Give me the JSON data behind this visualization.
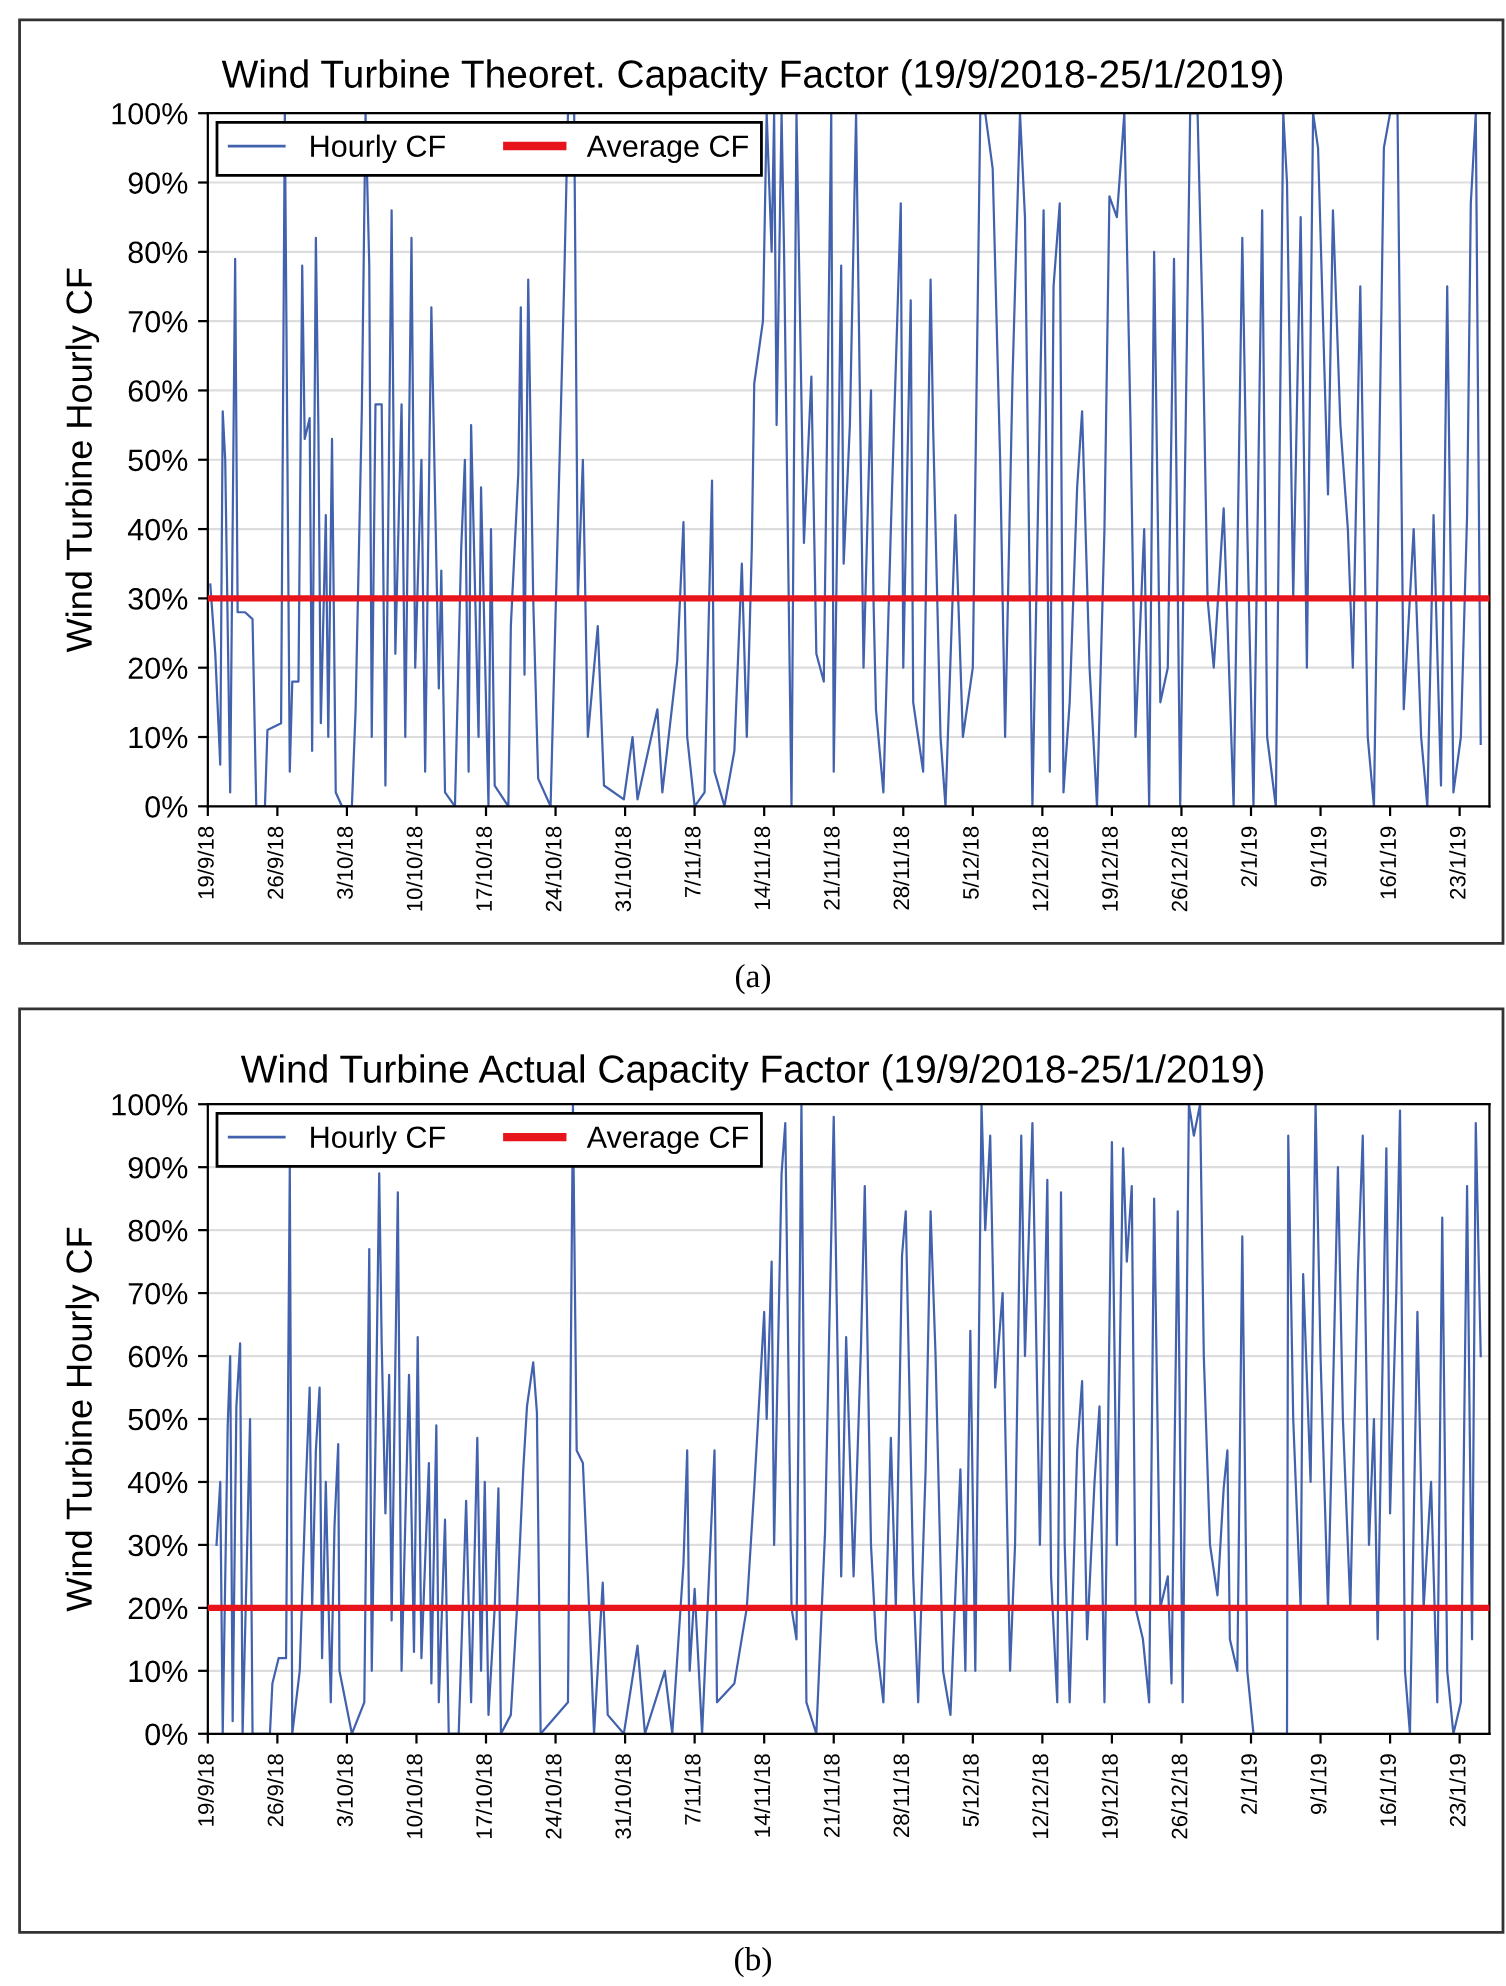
{
  "chart_data": [
    {
      "type": "line",
      "title": "Wind Turbine Theoret. Capacity Factor (19/9/2018-25/1/2019)",
      "ylabel": "Wind Turbine Hourly CF",
      "annotations": [
        "(a)"
      ],
      "xlim": [
        "2018-09-19",
        "2019-01-26"
      ],
      "xticks": [
        {
          "value": "2018-09-19",
          "label": "19/9/18"
        },
        {
          "value": "2018-09-26",
          "label": "26/9/18"
        },
        {
          "value": "2018-10-03",
          "label": "3/10/18"
        },
        {
          "value": "2018-10-10",
          "label": "10/10/18"
        },
        {
          "value": "2018-10-17",
          "label": "17/10/18"
        },
        {
          "value": "2018-10-24",
          "label": "24/10/18"
        },
        {
          "value": "2018-10-31",
          "label": "31/10/18"
        },
        {
          "value": "2018-11-07",
          "label": "7/11/18"
        },
        {
          "value": "2018-11-14",
          "label": "14/11/18"
        },
        {
          "value": "2018-11-21",
          "label": "21/11/18"
        },
        {
          "value": "2018-11-28",
          "label": "28/11/18"
        },
        {
          "value": "2018-12-05",
          "label": "5/12/18"
        },
        {
          "value": "2018-12-12",
          "label": "12/12/18"
        },
        {
          "value": "2018-12-19",
          "label": "19/12/18"
        },
        {
          "value": "2018-12-26",
          "label": "26/12/18"
        },
        {
          "value": "2019-01-02",
          "label": "2/1/19"
        },
        {
          "value": "2019-01-09",
          "label": "9/1/19"
        },
        {
          "value": "2019-01-16",
          "label": "16/1/19"
        },
        {
          "value": "2019-01-23",
          "label": "23/1/19"
        }
      ],
      "ylim": [
        0,
        100
      ],
      "yticks": [
        {
          "value": 0,
          "label": "0%"
        },
        {
          "value": 10,
          "label": "10%"
        },
        {
          "value": 20,
          "label": "20%"
        },
        {
          "value": 30,
          "label": "30%"
        },
        {
          "value": 40,
          "label": "40%"
        },
        {
          "value": 50,
          "label": "50%"
        },
        {
          "value": 60,
          "label": "60%"
        },
        {
          "value": 70,
          "label": "70%"
        },
        {
          "value": 80,
          "label": "80%"
        },
        {
          "value": 90,
          "label": "90%"
        },
        {
          "value": 100,
          "label": "100%"
        }
      ],
      "grid": "y",
      "legend": "top left",
      "line_style": "solid",
      "marker": "none",
      "series": [
        {
          "name": "Hourly CF",
          "color": "#4262ae",
          "x": [
            "2018-09-19T06:00",
            "2018-09-19T18:00",
            "2018-09-20T06:00",
            "2018-09-20T12:00",
            "2018-09-20T18:00",
            "2018-09-21T06:00",
            "2018-09-21T18:00",
            "2018-09-22T00:00",
            "2018-09-22T18:00",
            "2018-09-23T12:00",
            "2018-09-23T21:00",
            "2018-09-24T18:00",
            "2018-09-25T00:00",
            "2018-09-26T09:00",
            "2018-09-26T18:00",
            "2018-09-27T06:00",
            "2018-09-27T12:00",
            "2018-09-28T03:00",
            "2018-09-28T12:00",
            "2018-09-28T18:00",
            "2018-09-29T06:00",
            "2018-09-29T12:00",
            "2018-09-29T21:00",
            "2018-09-30T03:00",
            "2018-09-30T09:00",
            "2018-09-30T21:00",
            "2018-10-01T03:00",
            "2018-10-01T12:00",
            "2018-10-01T21:00",
            "2018-10-02T12:00",
            "2018-10-03T12:00",
            "2018-10-03T21:00",
            "2018-10-04T12:00",
            "2018-10-04T21:00",
            "2018-10-05T06:00",
            "2018-10-05T12:00",
            "2018-10-05T21:00",
            "2018-10-06T12:00",
            "2018-10-06T21:00",
            "2018-10-07T12:00",
            "2018-10-07T21:00",
            "2018-10-08T12:00",
            "2018-10-08T21:00",
            "2018-10-09T12:00",
            "2018-10-09T21:00",
            "2018-10-10T12:00",
            "2018-10-10T21:00",
            "2018-10-11T12:00",
            "2018-10-12T06:00",
            "2018-10-12T12:00",
            "2018-10-12T21:00",
            "2018-10-13T21:00",
            "2018-10-14T12:00",
            "2018-10-14T21:00",
            "2018-10-15T06:00",
            "2018-10-15T12:00",
            "2018-10-16T06:00",
            "2018-10-16T12:00",
            "2018-10-17T06:00",
            "2018-10-17T12:00",
            "2018-10-17T21:00",
            "2018-10-19T06:00",
            "2018-10-19T12:00",
            "2018-10-20T06:00",
            "2018-10-20T12:00",
            "2018-10-20T21:00",
            "2018-10-21T06:00",
            "2018-10-21T18:00",
            "2018-10-22T06:00",
            "2018-10-23T12:00",
            "2018-10-24T21:00",
            "2018-10-25T06:00",
            "2018-10-25T21:00",
            "2018-10-26T06:00",
            "2018-10-26T18:00",
            "2018-10-27T06:00",
            "2018-10-28T06:00",
            "2018-10-28T21:00",
            "2018-10-30T21:00",
            "2018-10-31T18:00",
            "2018-11-01T06:00",
            "2018-11-03T06:00",
            "2018-11-03T18:00",
            "2018-11-05T06:00",
            "2018-11-05T21:00",
            "2018-11-06T06:00",
            "2018-11-07T00:00",
            "2018-11-08T00:00",
            "2018-11-08T18:00",
            "2018-11-09T00:00",
            "2018-11-10T00:00",
            "2018-11-11T00:00",
            "2018-11-11T18:00",
            "2018-11-12T06:00",
            "2018-11-12T18:00",
            "2018-11-13T00:00",
            "2018-11-13T21:00",
            "2018-11-14T06:00",
            "2018-11-14T18:00",
            "2018-11-15T00:00",
            "2018-11-15T06:00",
            "2018-11-15T18:00",
            "2018-11-16T00:00",
            "2018-11-16T18:00",
            "2018-11-17T06:00",
            "2018-11-18T00:00",
            "2018-11-18T18:00",
            "2018-11-19T06:00",
            "2018-11-20T00:00",
            "2018-11-20T18:00",
            "2018-11-21T00:00",
            "2018-11-21T18:00",
            "2018-11-22T00:00",
            "2018-11-22T15:00",
            "2018-11-23T06:00",
            "2018-11-24T00:00",
            "2018-11-24T18:00",
            "2018-11-25T00:00",
            "2018-11-25T06:00",
            "2018-11-26T00:00",
            "2018-11-26T18:00",
            "2018-11-27T18:00",
            "2018-11-28T00:00",
            "2018-11-28T18:00",
            "2018-11-29T00:00",
            "2018-11-30T00:00",
            "2018-11-30T18:00",
            "2018-12-01T00:00",
            "2018-12-01T18:00",
            "2018-12-02T06:00",
            "2018-12-03T06:00",
            "2018-12-04T00:00",
            "2018-12-05T00:00",
            "2018-12-05T18:00",
            "2018-12-06T06:00",
            "2018-12-07T00:00",
            "2018-12-07T18:00",
            "2018-12-08T06:00",
            "2018-12-09T00:00",
            "2018-12-09T18:00",
            "2018-12-10T06:00",
            "2018-12-11T00:00",
            "2018-12-12T03:00",
            "2018-12-12T18:00",
            "2018-12-13T03:00",
            "2018-12-13T18:00",
            "2018-12-14T03:00",
            "2018-12-14T18:00",
            "2018-12-15T12:00",
            "2018-12-16T00:00",
            "2018-12-16T18:00",
            "2018-12-17T12:00",
            "2018-12-18T06:00",
            "2018-12-18T18:00",
            "2018-12-19T12:00",
            "2018-12-20T06:00",
            "2018-12-20T21:00",
            "2018-12-21T09:00",
            "2018-12-22T06:00",
            "2018-12-22T18:00",
            "2018-12-23T06:00",
            "2018-12-23T21:00",
            "2018-12-24T15:00",
            "2018-12-25T06:00",
            "2018-12-25T21:00",
            "2018-12-26T21:00",
            "2018-12-27T15:00",
            "2018-12-28T03:00",
            "2018-12-28T15:00",
            "2018-12-29T06:00",
            "2018-12-30T06:00",
            "2018-12-31T06:00",
            "2019-01-01T03:00",
            "2019-01-01T15:00",
            "2019-01-02T06:00",
            "2019-01-03T03:00",
            "2019-01-03T15:00",
            "2019-01-04T12:00",
            "2019-01-05T06:00",
            "2019-01-05T15:00",
            "2019-01-06T06:00",
            "2019-01-07T00:00",
            "2019-01-07T15:00",
            "2019-01-08T06:00",
            "2019-01-08T18:00",
            "2019-01-09T18:00",
            "2019-01-10T06:00",
            "2019-01-11T00:00",
            "2019-01-11T18:00",
            "2019-01-12T06:00",
            "2019-01-13T00:00",
            "2019-01-13T18:00",
            "2019-01-14T09:00",
            "2019-01-15T09:00",
            "2019-01-16T00:00",
            "2019-01-16T18:00",
            "2019-01-17T09:00",
            "2019-01-18T09:00",
            "2019-01-19T03:00",
            "2019-01-19T18:00",
            "2019-01-20T09:00",
            "2019-01-21T03:00",
            "2019-01-21T18:00",
            "2019-01-22T09:00",
            "2019-01-23T03:00",
            "2019-01-23T18:00",
            "2019-01-24T03:00",
            "2019-01-24T15:00",
            "2019-01-25T03:00"
          ],
          "values": [
            32,
            22,
            6,
            57,
            50,
            2,
            79,
            28,
            28,
            27,
            0,
            0,
            11,
            12,
            100,
            5,
            18,
            18,
            78,
            53,
            56,
            8,
            82,
            55,
            12,
            42,
            10,
            53,
            2,
            0,
            0,
            14,
            57,
            100,
            78,
            10,
            58,
            58,
            3,
            86,
            22,
            58,
            10,
            82,
            20,
            50,
            5,
            72,
            17,
            34,
            2,
            0,
            37,
            50,
            5,
            55,
            10,
            46,
            0,
            40,
            3,
            0,
            26,
            48,
            72,
            19,
            76,
            30,
            4,
            0,
            76,
            100,
            100,
            30,
            50,
            10,
            26,
            3,
            1,
            10,
            1,
            14,
            2,
            21,
            41,
            10,
            0,
            2,
            47,
            5,
            0,
            8,
            35,
            10,
            37,
            61,
            70,
            100,
            80,
            100,
            55,
            100,
            80,
            0,
            100,
            38,
            62,
            22,
            18,
            100,
            5,
            78,
            35,
            55,
            100,
            20,
            60,
            30,
            14,
            2,
            40,
            87,
            20,
            73,
            15,
            5,
            76,
            55,
            10,
            0,
            42,
            10,
            20,
            100,
            100,
            92,
            50,
            10,
            62,
            100,
            85,
            0,
            86,
            5,
            75,
            87,
            2,
            15,
            46,
            57,
            20,
            0,
            40,
            88,
            85,
            100,
            55,
            10,
            40,
            0,
            80,
            15,
            20,
            79,
            0,
            100,
            100,
            70,
            30,
            20,
            43,
            0,
            82,
            40,
            0,
            86,
            10,
            0,
            100,
            90,
            30,
            85,
            20,
            100,
            95,
            45,
            86,
            55,
            40,
            20,
            75,
            10,
            0,
            95,
            100,
            100,
            14,
            40,
            10,
            0,
            42,
            3,
            75,
            2,
            10,
            42,
            87,
            100,
            9
          ]
        },
        {
          "name": "Average CF",
          "color": "#e8141c",
          "x": [
            "2018-09-19",
            "2019-01-26"
          ],
          "values": [
            30,
            30
          ]
        }
      ]
    },
    {
      "type": "line",
      "title": "Wind Turbine Actual Capacity Factor (19/9/2018-25/1/2019)",
      "ylabel": "Wind Turbine Hourly CF",
      "annotations": [
        "(b)"
      ],
      "xlim": [
        "2018-09-19",
        "2019-01-26"
      ],
      "xticks": [
        {
          "value": "2018-09-19",
          "label": "19/9/18"
        },
        {
          "value": "2018-09-26",
          "label": "26/9/18"
        },
        {
          "value": "2018-10-03",
          "label": "3/10/18"
        },
        {
          "value": "2018-10-10",
          "label": "10/10/18"
        },
        {
          "value": "2018-10-17",
          "label": "17/10/18"
        },
        {
          "value": "2018-10-24",
          "label": "24/10/18"
        },
        {
          "value": "2018-10-31",
          "label": "31/10/18"
        },
        {
          "value": "2018-11-07",
          "label": "7/11/18"
        },
        {
          "value": "2018-11-14",
          "label": "14/11/18"
        },
        {
          "value": "2018-11-21",
          "label": "21/11/18"
        },
        {
          "value": "2018-11-28",
          "label": "28/11/18"
        },
        {
          "value": "2018-12-05",
          "label": "5/12/18"
        },
        {
          "value": "2018-12-12",
          "label": "12/12/18"
        },
        {
          "value": "2018-12-19",
          "label": "19/12/18"
        },
        {
          "value": "2018-12-26",
          "label": "26/12/18"
        },
        {
          "value": "2019-01-02",
          "label": "2/1/19"
        },
        {
          "value": "2019-01-09",
          "label": "9/1/19"
        },
        {
          "value": "2019-01-16",
          "label": "16/1/19"
        },
        {
          "value": "2019-01-23",
          "label": "23/1/19"
        }
      ],
      "ylim": [
        0,
        100
      ],
      "yticks": [
        {
          "value": 0,
          "label": "0%"
        },
        {
          "value": 10,
          "label": "10%"
        },
        {
          "value": 20,
          "label": "20%"
        },
        {
          "value": 30,
          "label": "30%"
        },
        {
          "value": 40,
          "label": "40%"
        },
        {
          "value": 50,
          "label": "50%"
        },
        {
          "value": 60,
          "label": "60%"
        },
        {
          "value": 70,
          "label": "70%"
        },
        {
          "value": 80,
          "label": "80%"
        },
        {
          "value": 90,
          "label": "90%"
        },
        {
          "value": 100,
          "label": "100%"
        }
      ],
      "grid": "y",
      "legend": "top left",
      "line_style": "solid",
      "marker": "none",
      "series": [
        {
          "name": "Hourly CF",
          "color": "#4262ae",
          "x": [
            "2018-09-19T21:00",
            "2018-09-20T06:00",
            "2018-09-20T12:00",
            "2018-09-21T00:00",
            "2018-09-21T06:00",
            "2018-09-21T12:00",
            "2018-09-21T21:00",
            "2018-09-22T06:00",
            "2018-09-22T12:00",
            "2018-09-22T21:00",
            "2018-09-23T06:00",
            "2018-09-23T12:00",
            "2018-09-25T06:00",
            "2018-09-25T12:00",
            "2018-09-26T03:00",
            "2018-09-26T21:00",
            "2018-09-27T06:00",
            "2018-09-27T12:00",
            "2018-09-28T06:00",
            "2018-09-28T21:00",
            "2018-09-29T06:00",
            "2018-09-29T12:00",
            "2018-09-29T21:00",
            "2018-09-30T06:00",
            "2018-09-30T12:00",
            "2018-09-30T21:00",
            "2018-10-01T09:00",
            "2018-10-01T18:00",
            "2018-10-02T03:00",
            "2018-10-02T06:00",
            "2018-10-03T12:00",
            "2018-10-04T18:00",
            "2018-10-05T06:00",
            "2018-10-05T12:00",
            "2018-10-05T21:00",
            "2018-10-06T06:00",
            "2018-10-06T12:00",
            "2018-10-06T21:00",
            "2018-10-07T06:00",
            "2018-10-07T12:00",
            "2018-10-08T03:00",
            "2018-10-08T12:00",
            "2018-10-09T06:00",
            "2018-10-09T18:00",
            "2018-10-10T03:00",
            "2018-10-10T12:00",
            "2018-10-11T06:00",
            "2018-10-11T12:00",
            "2018-10-12T00:00",
            "2018-10-12T06:00",
            "2018-10-12T21:00",
            "2018-10-13T06:00",
            "2018-10-14T06:00",
            "2018-10-15T00:00",
            "2018-10-15T12:00",
            "2018-10-16T03:00",
            "2018-10-16T12:00",
            "2018-10-16T21:00",
            "2018-10-17T06:00",
            "2018-10-17T21:00",
            "2018-10-18T06:00",
            "2018-10-18T12:00",
            "2018-10-19T12:00",
            "2018-10-20T03:00",
            "2018-10-20T18:00",
            "2018-10-21T03:00",
            "2018-10-21T18:00",
            "2018-10-22T03:00",
            "2018-10-22T12:00",
            "2018-10-25T06:00",
            "2018-10-25T18:00",
            "2018-10-26T03:00",
            "2018-10-26T18:00",
            "2018-10-27T06:00",
            "2018-10-27T21:00",
            "2018-10-28T18:00",
            "2018-10-29T06:00",
            "2018-10-30T21:00",
            "2018-11-01T06:00",
            "2018-11-02T00:00",
            "2018-11-04T00:00",
            "2018-11-04T18:00",
            "2018-11-05T21:00",
            "2018-11-06T06:00",
            "2018-11-06T12:00",
            "2018-11-07T00:00",
            "2018-11-07T18:00",
            "2018-11-09T00:00",
            "2018-11-09T06:00",
            "2018-11-11T00:00",
            "2018-11-12T06:00",
            "2018-11-13T00:00",
            "2018-11-14T00:00",
            "2018-11-14T06:00",
            "2018-11-14T18:00",
            "2018-11-15T00:00",
            "2018-11-15T18:00",
            "2018-11-16T03:00",
            "2018-11-16T18:00",
            "2018-11-17T06:00",
            "2018-11-17T18:00",
            "2018-11-18T06:00",
            "2018-11-19T06:00",
            "2018-11-20T03:00",
            "2018-11-21T00:00",
            "2018-11-21T18:00",
            "2018-11-22T06:00",
            "2018-11-23T00:00",
            "2018-11-23T18:00",
            "2018-11-24T03:00",
            "2018-11-24T18:00",
            "2018-11-25T06:00",
            "2018-11-26T00:00",
            "2018-11-26T18:00",
            "2018-11-27T06:00",
            "2018-11-27T21:00",
            "2018-11-28T06:00",
            "2018-11-29T00:00",
            "2018-11-29T12:00",
            "2018-11-30T06:00",
            "2018-11-30T18:00",
            "2018-12-01T06:00",
            "2018-12-02T00:00",
            "2018-12-02T18:00",
            "2018-12-03T18:00",
            "2018-12-04T06:00",
            "2018-12-04T18:00",
            "2018-12-05T06:00",
            "2018-12-05T21:00",
            "2018-12-06T06:00",
            "2018-12-06T18:00",
            "2018-12-07T06:00",
            "2018-12-08T00:00",
            "2018-12-08T18:00",
            "2018-12-09T06:00",
            "2018-12-09T21:00",
            "2018-12-10T06:00",
            "2018-12-11T00:00",
            "2018-12-11T18:00",
            "2018-12-12T00:00",
            "2018-12-12T12:00",
            "2018-12-12T21:00",
            "2018-12-13T12:00",
            "2018-12-13T21:00",
            "2018-12-14T06:00",
            "2018-12-14T18:00",
            "2018-12-15T12:00",
            "2018-12-16T00:00",
            "2018-12-16T12:00",
            "2018-12-17T06:00",
            "2018-12-17T18:00",
            "2018-12-18T06:00",
            "2018-12-19T00:00",
            "2018-12-19T12:00",
            "2018-12-20T03:00",
            "2018-12-20T12:00",
            "2018-12-21T00:00",
            "2018-12-21T09:00",
            "2018-12-22T03:00",
            "2018-12-22T18:00",
            "2018-12-23T06:00",
            "2018-12-23T21:00",
            "2018-12-24T15:00",
            "2018-12-25T00:00",
            "2018-12-25T15:00",
            "2018-12-26T03:00",
            "2018-12-26T18:00",
            "2018-12-27T06:00",
            "2018-12-27T21:00",
            "2018-12-28T06:00",
            "2018-12-28T21:00",
            "2018-12-29T15:00",
            "2018-12-30T06:00",
            "2018-12-30T15:00",
            "2018-12-30T21:00",
            "2018-12-31T15:00",
            "2019-01-01T03:00",
            "2019-01-01T15:00",
            "2019-01-02T06:00",
            "2019-01-05T15:00",
            "2019-01-05T18:00",
            "2019-01-06T06:00",
            "2019-01-07T00:00",
            "2019-01-07T06:00",
            "2019-01-08T00:00",
            "2019-01-08T12:00",
            "2019-01-09T00:00",
            "2019-01-09T18:00",
            "2019-01-10T03:00",
            "2019-01-10T18:00",
            "2019-01-11T06:00",
            "2019-01-12T00:00",
            "2019-01-12T18:00",
            "2019-01-13T06:00",
            "2019-01-13T21:00",
            "2019-01-14T09:00",
            "2019-01-14T18:00",
            "2019-01-15T15:00",
            "2019-01-16T00:00",
            "2019-01-16T15:00",
            "2019-01-17T00:00",
            "2019-01-17T12:00",
            "2019-01-18T00:00",
            "2019-01-18T18:00",
            "2019-01-19T09:00",
            "2019-01-20T03:00",
            "2019-01-20T18:00",
            "2019-01-21T06:00",
            "2019-01-21T18:00",
            "2019-01-22T09:00",
            "2019-01-23T03:00",
            "2019-01-23T18:00",
            "2019-01-24T06:00",
            "2019-01-24T15:00",
            "2019-01-25T03:00"
          ],
          "values": [
            30,
            40,
            0,
            49,
            60,
            2,
            52,
            62,
            0,
            24,
            50,
            0,
            0,
            8,
            12,
            12,
            90,
            0,
            10,
            40,
            55,
            20,
            45,
            55,
            12,
            40,
            5,
            33,
            46,
            10,
            0,
            5,
            77,
            10,
            46,
            89,
            62,
            35,
            57,
            18,
            86,
            10,
            57,
            13,
            63,
            12,
            43,
            8,
            49,
            5,
            34,
            0,
            0,
            37,
            5,
            47,
            10,
            40,
            3,
            20,
            39,
            0,
            3,
            20,
            42,
            52,
            59,
            51,
            0,
            5,
            100,
            45,
            43,
            25,
            0,
            24,
            3,
            0,
            14,
            0,
            10,
            0,
            27,
            45,
            10,
            23,
            0,
            45,
            5,
            8,
            20,
            39,
            67,
            50,
            75,
            30,
            89,
            97,
            20,
            15,
            100,
            5,
            0,
            32,
            98,
            25,
            63,
            25,
            62,
            87,
            30,
            15,
            5,
            47,
            20,
            76,
            83,
            25,
            5,
            42,
            83,
            60,
            10,
            3,
            42,
            10,
            64,
            10,
            100,
            80,
            95,
            55,
            70,
            10,
            30,
            95,
            60,
            97,
            30,
            49,
            88,
            25,
            5,
            86,
            30,
            5,
            45,
            56,
            15,
            40,
            52,
            5,
            94,
            30,
            93,
            75,
            87,
            20,
            15,
            5,
            85,
            20,
            25,
            8,
            83,
            5,
            100,
            95,
            100,
            60,
            30,
            22,
            39,
            45,
            15,
            10,
            79,
            10,
            0,
            0,
            95,
            50,
            20,
            73,
            40,
            100,
            60,
            20,
            45,
            90,
            50,
            20,
            73,
            95,
            30,
            50,
            15,
            93,
            35,
            70,
            99,
            10,
            0,
            67,
            20,
            40,
            5,
            82,
            10,
            0,
            5,
            87,
            15,
            97,
            60
          ]
        },
        {
          "name": "Average CF",
          "color": "#e8141c",
          "x": [
            "2018-09-19",
            "2019-01-26"
          ],
          "values": [
            20,
            20
          ]
        }
      ]
    }
  ]
}
